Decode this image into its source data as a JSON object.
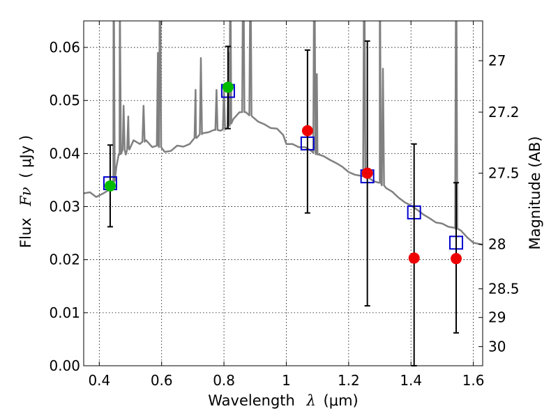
{
  "chart_data": {
    "type": "scatter",
    "title": "",
    "xlabel": "Wavelength",
    "xlabel_symbol": "λ",
    "xlabel_unit": "(μm)",
    "ylabel": "Flux",
    "ylabel_symbol": "Fν",
    "ylabel_unit": "( μJy )",
    "y2label": "Magnitude (AB)",
    "xlim": [
      0.35,
      1.63
    ],
    "ylim": [
      0.0,
      0.065
    ],
    "grid": true,
    "grid_style": "dotted",
    "x_ticks": [
      0.4,
      0.6,
      0.8,
      1.0,
      1.2,
      1.4,
      1.6
    ],
    "x_tick_labels": [
      "0.4",
      "0.6",
      "0.8",
      "1",
      "1.2",
      "1.4",
      "1.6"
    ],
    "y_ticks": [
      0.0,
      0.01,
      0.02,
      0.03,
      0.04,
      0.05,
      0.06
    ],
    "y_tick_labels": [
      "0.00",
      "0.01",
      "0.02",
      "0.03",
      "0.04",
      "0.05",
      "0.06"
    ],
    "y2_ticks": [
      {
        "label": "27",
        "flux": 0.0575
      },
      {
        "label": "27.2",
        "flux": 0.0478
      },
      {
        "label": "27.5",
        "flux": 0.0363
      },
      {
        "label": "28",
        "flux": 0.0229
      },
      {
        "label": "28.5",
        "flux": 0.0145
      },
      {
        "label": "29",
        "flux": 0.0091
      },
      {
        "label": "30",
        "flux": 0.0036
      }
    ],
    "series": [
      {
        "kind": "spectrum",
        "color": "#808080",
        "points": [
          [
            0.35,
            0.0325
          ],
          [
            0.37,
            0.0327
          ],
          [
            0.39,
            0.0318
          ],
          [
            0.41,
            0.0324
          ],
          [
            0.43,
            0.0331
          ],
          [
            0.445,
            0.0345
          ],
          [
            0.455,
            0.0375
          ],
          [
            0.465,
            0.0398
          ],
          [
            0.475,
            0.041
          ],
          [
            0.485,
            0.0398
          ],
          [
            0.495,
            0.041
          ],
          [
            0.51,
            0.0425
          ],
          [
            0.53,
            0.0418
          ],
          [
            0.55,
            0.0425
          ],
          [
            0.57,
            0.0412
          ],
          [
            0.59,
            0.0415
          ],
          [
            0.61,
            0.0403
          ],
          [
            0.63,
            0.0405
          ],
          [
            0.65,
            0.0415
          ],
          [
            0.67,
            0.0413
          ],
          [
            0.69,
            0.0418
          ],
          [
            0.71,
            0.043
          ],
          [
            0.73,
            0.0438
          ],
          [
            0.75,
            0.044
          ],
          [
            0.77,
            0.0445
          ],
          [
            0.79,
            0.0443
          ],
          [
            0.81,
            0.0448
          ],
          [
            0.83,
            0.0465
          ],
          [
            0.85,
            0.0478
          ],
          [
            0.87,
            0.0478
          ],
          [
            0.89,
            0.047
          ],
          [
            0.91,
            0.046
          ],
          [
            0.93,
            0.0455
          ],
          [
            0.95,
            0.0448
          ],
          [
            0.97,
            0.0447
          ],
          [
            0.99,
            0.0435
          ],
          [
            1.0,
            0.0418
          ],
          [
            1.02,
            0.0418
          ],
          [
            1.04,
            0.0412
          ],
          [
            1.06,
            0.0412
          ],
          [
            1.08,
            0.0405
          ],
          [
            1.1,
            0.0398
          ],
          [
            1.12,
            0.0395
          ],
          [
            1.14,
            0.0388
          ],
          [
            1.16,
            0.0382
          ],
          [
            1.18,
            0.0375
          ],
          [
            1.2,
            0.0365
          ],
          [
            1.22,
            0.036
          ],
          [
            1.24,
            0.0358
          ],
          [
            1.26,
            0.0356
          ],
          [
            1.28,
            0.0348
          ],
          [
            1.3,
            0.0345
          ],
          [
            1.32,
            0.0335
          ],
          [
            1.34,
            0.0328
          ],
          [
            1.36,
            0.0317
          ],
          [
            1.38,
            0.0308
          ],
          [
            1.4,
            0.0302
          ],
          [
            1.42,
            0.0294
          ],
          [
            1.44,
            0.0285
          ],
          [
            1.46,
            0.0278
          ],
          [
            1.48,
            0.027
          ],
          [
            1.5,
            0.0268
          ],
          [
            1.52,
            0.0262
          ],
          [
            1.54,
            0.026
          ],
          [
            1.56,
            0.0255
          ],
          [
            1.58,
            0.0242
          ],
          [
            1.6,
            0.0232
          ],
          [
            1.63,
            0.0228
          ]
        ],
        "emission_lines": [
          [
            0.446,
            0.082
          ],
          [
            0.466,
            0.07
          ],
          [
            0.478,
            0.049
          ],
          [
            0.493,
            0.047
          ],
          [
            0.542,
            0.049
          ],
          [
            0.588,
            0.059
          ],
          [
            0.595,
            0.082
          ],
          [
            0.709,
            0.052
          ],
          [
            0.726,
            0.058
          ],
          [
            0.776,
            0.052
          ],
          [
            0.8,
            0.052
          ],
          [
            0.815,
            0.059
          ],
          [
            0.82,
            0.082
          ],
          [
            0.862,
            0.082
          ],
          [
            0.885,
            0.078
          ],
          [
            1.09,
            0.082
          ],
          [
            1.098,
            0.055
          ],
          [
            1.25,
            0.082
          ],
          [
            1.3,
            0.082
          ],
          [
            1.31,
            0.056
          ],
          [
            1.545,
            0.082
          ]
        ]
      },
      {
        "kind": "model_boxes",
        "color": "#0000cc",
        "x": [
          0.435,
          0.813,
          1.068,
          1.26,
          1.41,
          1.545
        ],
        "y": [
          0.0344,
          0.0518,
          0.0419,
          0.0357,
          0.0289,
          0.0232
        ]
      },
      {
        "kind": "observed_points",
        "x": [
          0.435,
          0.813,
          1.068,
          1.26,
          1.41,
          1.545
        ],
        "y": [
          0.0339,
          0.0525,
          0.0443,
          0.0363,
          0.0203,
          0.0202
        ],
        "err_low": [
          0.0262,
          0.0447,
          0.0288,
          0.0113,
          0.0,
          0.0062
        ],
        "err_high": [
          0.0416,
          0.0602,
          0.0595,
          0.0612,
          0.0418,
          0.0345
        ],
        "colors": [
          "#00bb00",
          "#00bb00",
          "#ee0000",
          "#ee0000",
          "#ee0000",
          "#ee0000"
        ]
      }
    ]
  }
}
